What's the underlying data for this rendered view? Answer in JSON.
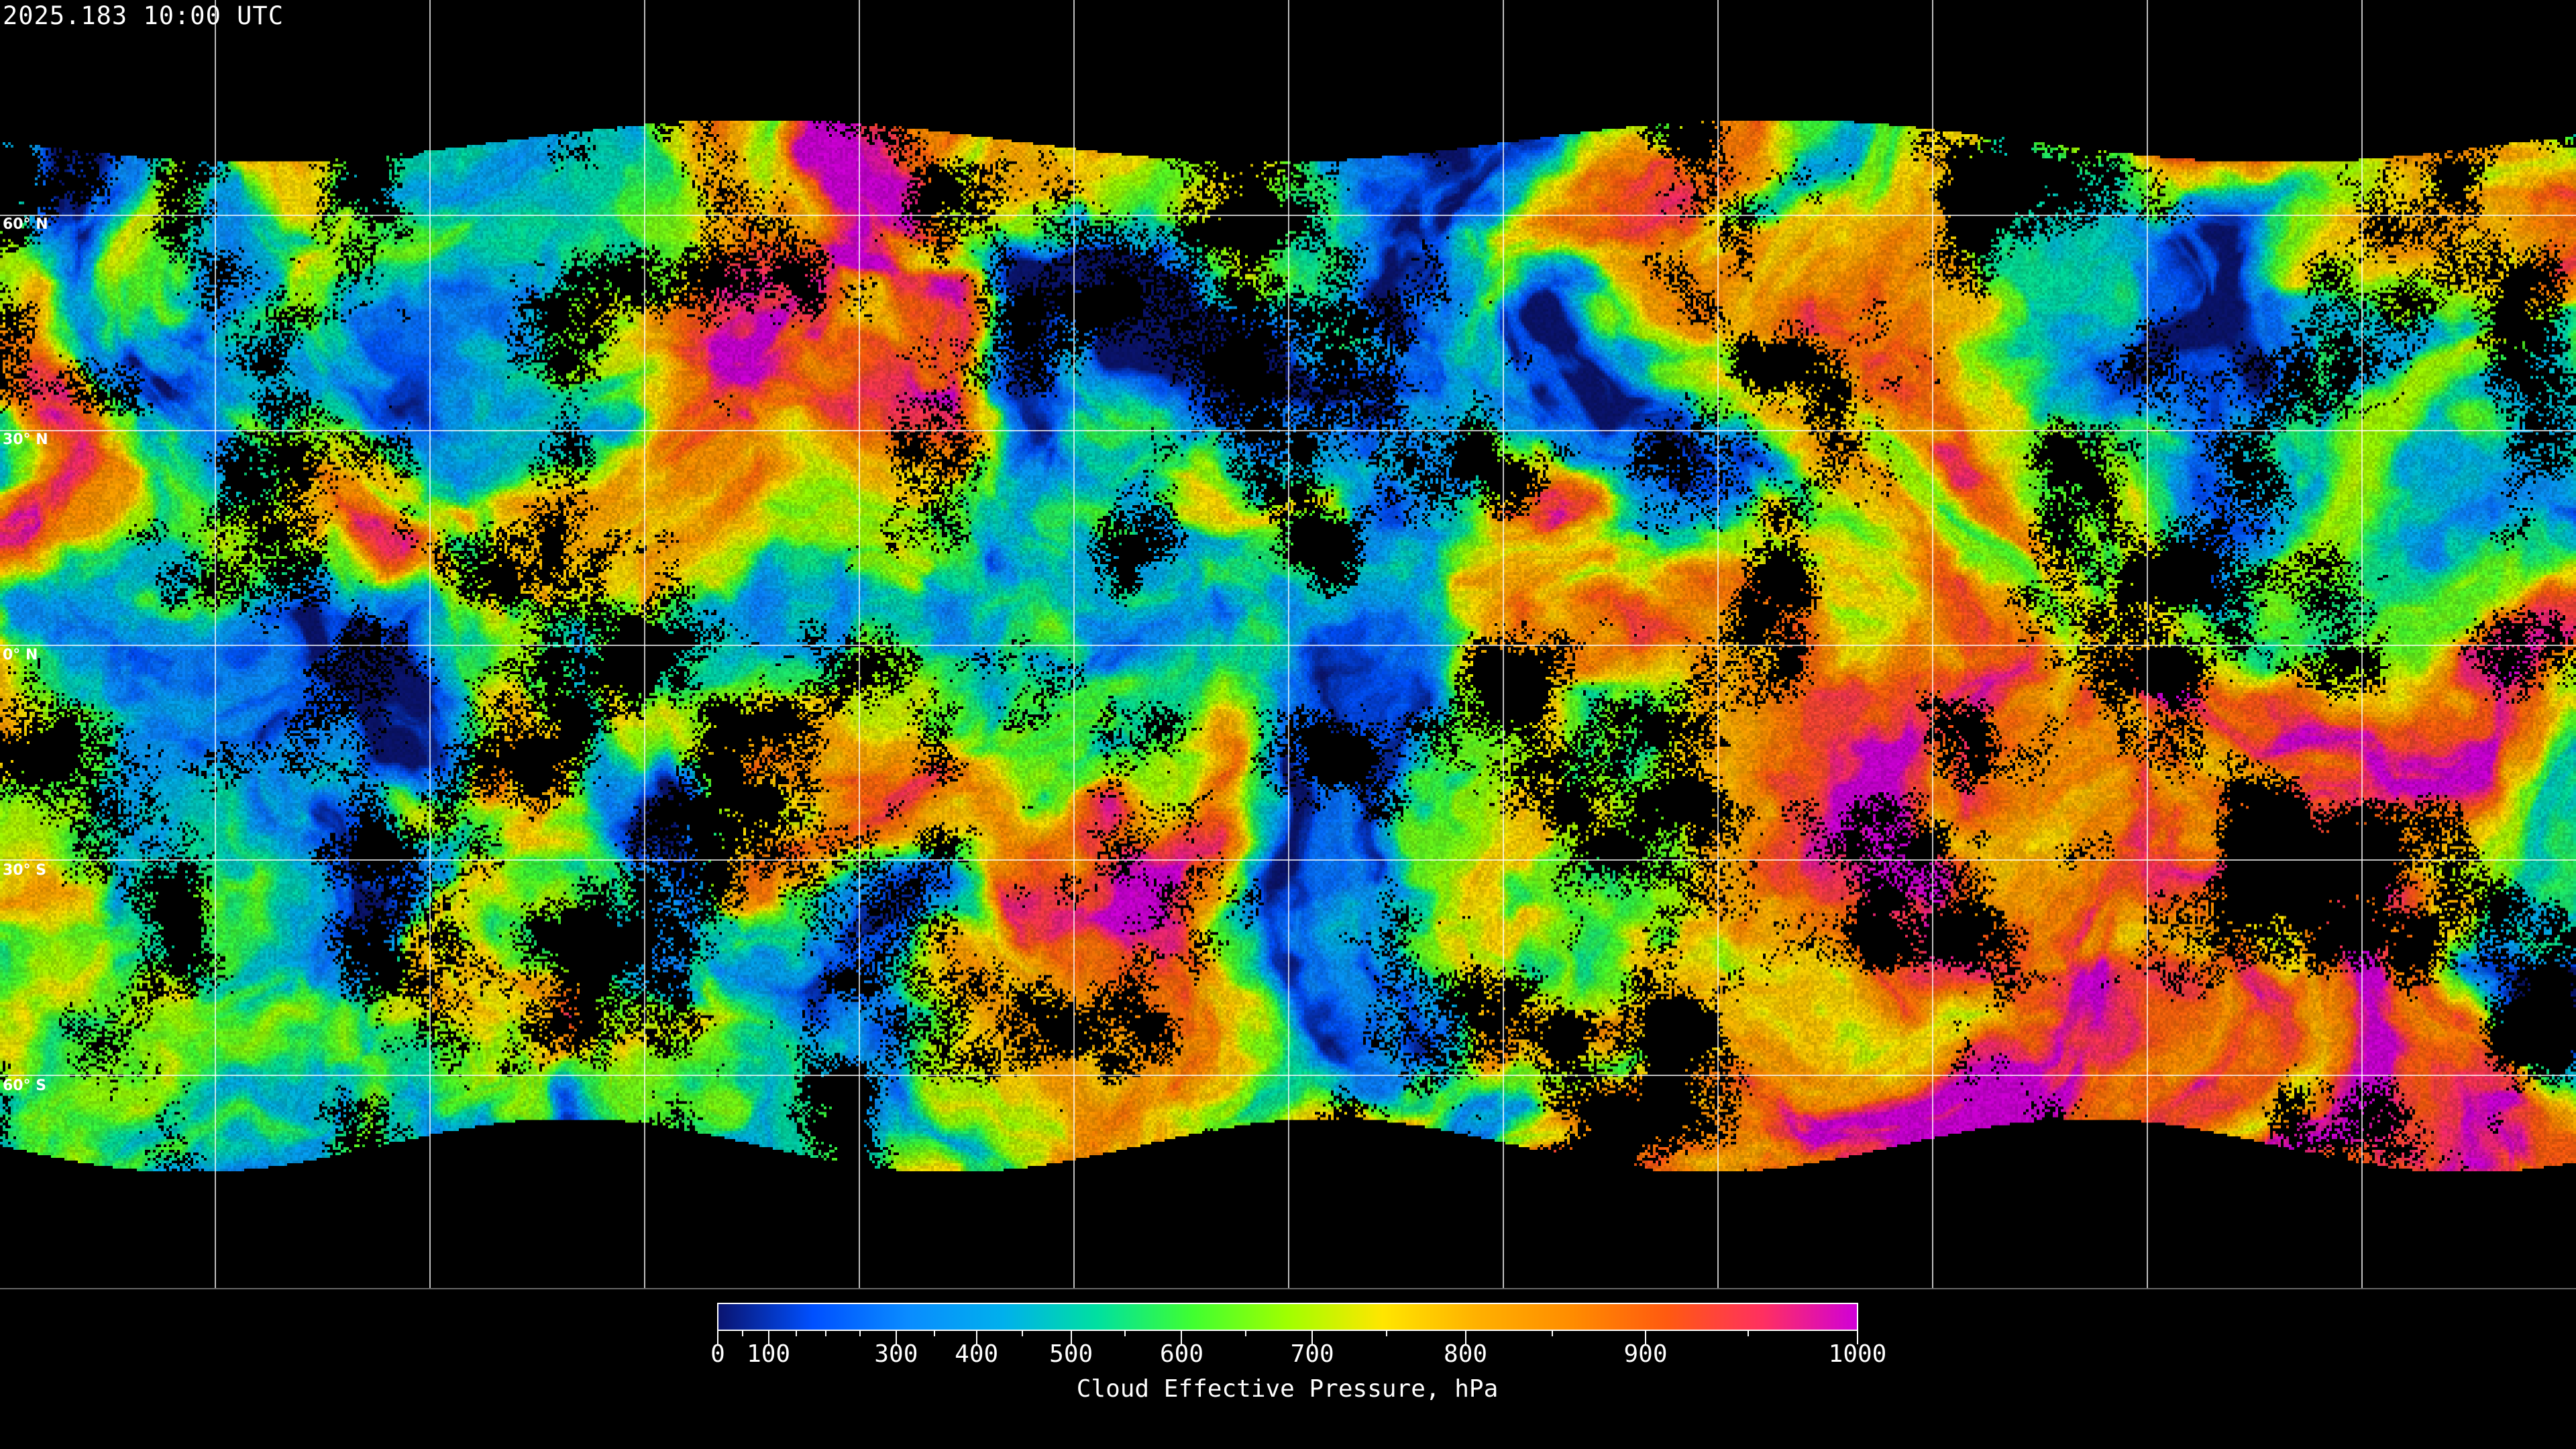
{
  "title": "2025.183 10:00 UTC",
  "map": {
    "projection": "equirectangular",
    "background_color": "#000000",
    "gridline_color": "#ffffff",
    "latitude_labels": [
      "60° N",
      "30° N",
      "0° N",
      "30° S",
      "60° S"
    ],
    "latitude_values": [
      60,
      30,
      0,
      -30,
      -60
    ],
    "longitude_gridline_spacing_deg": 30
  },
  "colorbar": {
    "title": "Cloud Effective Pressure, hPa",
    "range": [
      0,
      1000
    ],
    "major_tick_labels": [
      "0",
      "100",
      "300",
      "400",
      "500",
      "600",
      "700",
      "800",
      "900",
      "1000"
    ],
    "major_tick_fractions": [
      0,
      0.0445,
      0.1565,
      0.227,
      0.31,
      0.407,
      0.5216,
      0.656,
      0.814,
      1
    ],
    "minor_tick_fractions": [
      0.022,
      0.069,
      0.095,
      0.125,
      0.19,
      0.267,
      0.357,
      0.463,
      0.587,
      0.732,
      0.904
    ],
    "colors": [
      "#0a1470",
      "#0050ff",
      "#0a8cff",
      "#00b0ec",
      "#00e0a0",
      "#40ff30",
      "#a0ff00",
      "#ffe600",
      "#ffb000",
      "#ff8c00",
      "#ff5a10",
      "#ff3060",
      "#d000d8"
    ]
  }
}
